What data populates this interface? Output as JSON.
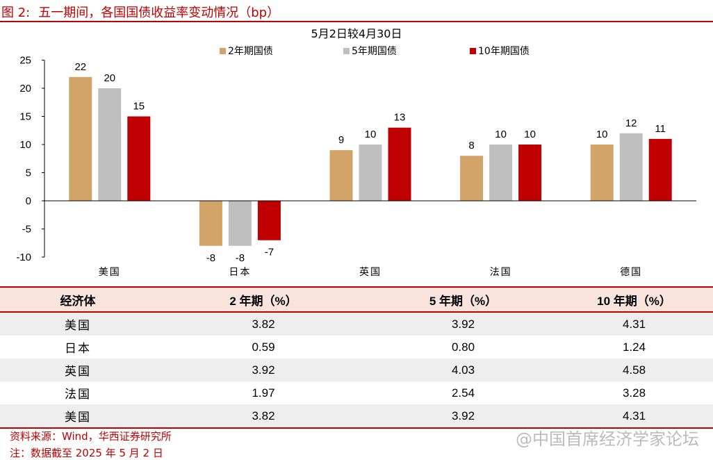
{
  "figure": {
    "label": "图 2:",
    "title": "五一期间，各国国债收益率变动情况（bp）"
  },
  "chart_data": {
    "type": "bar",
    "subtitle": "5月2日较4月30日",
    "categories": [
      "美国",
      "日本",
      "英国",
      "法国",
      "德国"
    ],
    "series": [
      {
        "name": "2年期国债",
        "color": "#d2a46a",
        "values": [
          22,
          -8,
          9,
          8,
          10
        ],
        "labels": [
          "22",
          "-8",
          "9",
          "8",
          "10"
        ]
      },
      {
        "name": "5年期国债",
        "color": "#bfbfbf",
        "values": [
          20,
          -8,
          10,
          10,
          12
        ],
        "labels": [
          "20",
          "-8",
          "10",
          "10",
          "12"
        ]
      },
      {
        "name": "10年期国债",
        "color": "#c00000",
        "values": [
          15,
          -7,
          13,
          10,
          11
        ],
        "labels": [
          "15",
          "-7",
          "13",
          "10",
          "11"
        ]
      }
    ],
    "ylim": [
      -10,
      25
    ],
    "yticks": [
      25,
      20,
      15,
      10,
      5,
      0,
      -5,
      -10
    ],
    "legend": "top",
    "grid": false
  },
  "table": {
    "headers": [
      "经济体",
      "2 年期（%）",
      "5 年期（%）",
      "10 年期（%）"
    ],
    "rows": [
      [
        "美国",
        "3.82",
        "3.92",
        "4.31"
      ],
      [
        "日本",
        "0.59",
        "0.80",
        "1.24"
      ],
      [
        "英国",
        "3.92",
        "4.03",
        "4.58"
      ],
      [
        "法国",
        "1.97",
        "2.54",
        "3.28"
      ],
      [
        "美国",
        "3.82",
        "3.92",
        "4.31"
      ]
    ]
  },
  "footer": {
    "source": "资料来源：Wind，华西证券研究所",
    "note": "注：数据截至 2025 年 5 月 2 日",
    "watermark": "@中国首席经济学家论坛"
  }
}
